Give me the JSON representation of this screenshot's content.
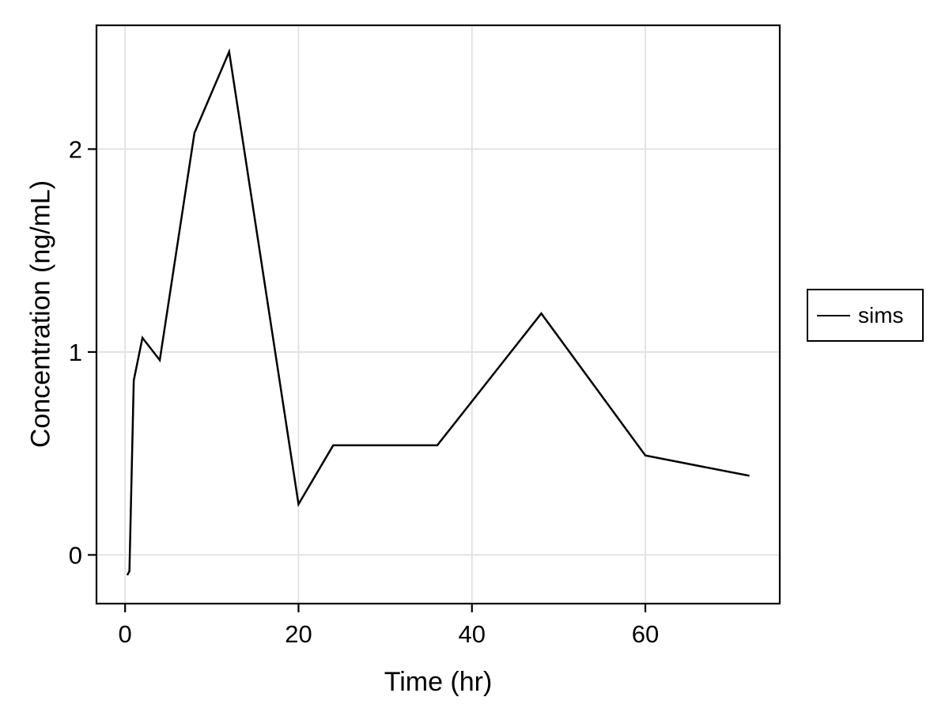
{
  "chart_data": {
    "type": "line",
    "xlabel": "Time (hr)",
    "ylabel": "Concentration (ng/mL)",
    "xlim": [
      -3.3,
      75.5
    ],
    "ylim": [
      -0.24,
      2.61
    ],
    "xticks": [
      0,
      20,
      40,
      60
    ],
    "yticks": [
      0,
      1,
      2
    ],
    "grid": true,
    "legend": {
      "position": "right-outside",
      "entries": [
        {
          "label": "sims",
          "color": "#000000"
        }
      ]
    },
    "series": [
      {
        "name": "sims",
        "color": "#000000",
        "x": [
          0.25,
          0.5,
          1,
          2,
          4,
          8,
          12,
          20,
          24,
          36,
          48,
          60,
          72
        ],
        "y": [
          -0.1,
          -0.08,
          0.86,
          1.07,
          0.96,
          2.08,
          2.48,
          0.25,
          0.54,
          0.54,
          1.19,
          0.49,
          0.39
        ]
      }
    ]
  },
  "style": {
    "background_color": "#ffffff",
    "grid_color": "#e1e1e1",
    "axis_color": "#000000",
    "text_color": "#000000",
    "line_color": "#000000"
  }
}
